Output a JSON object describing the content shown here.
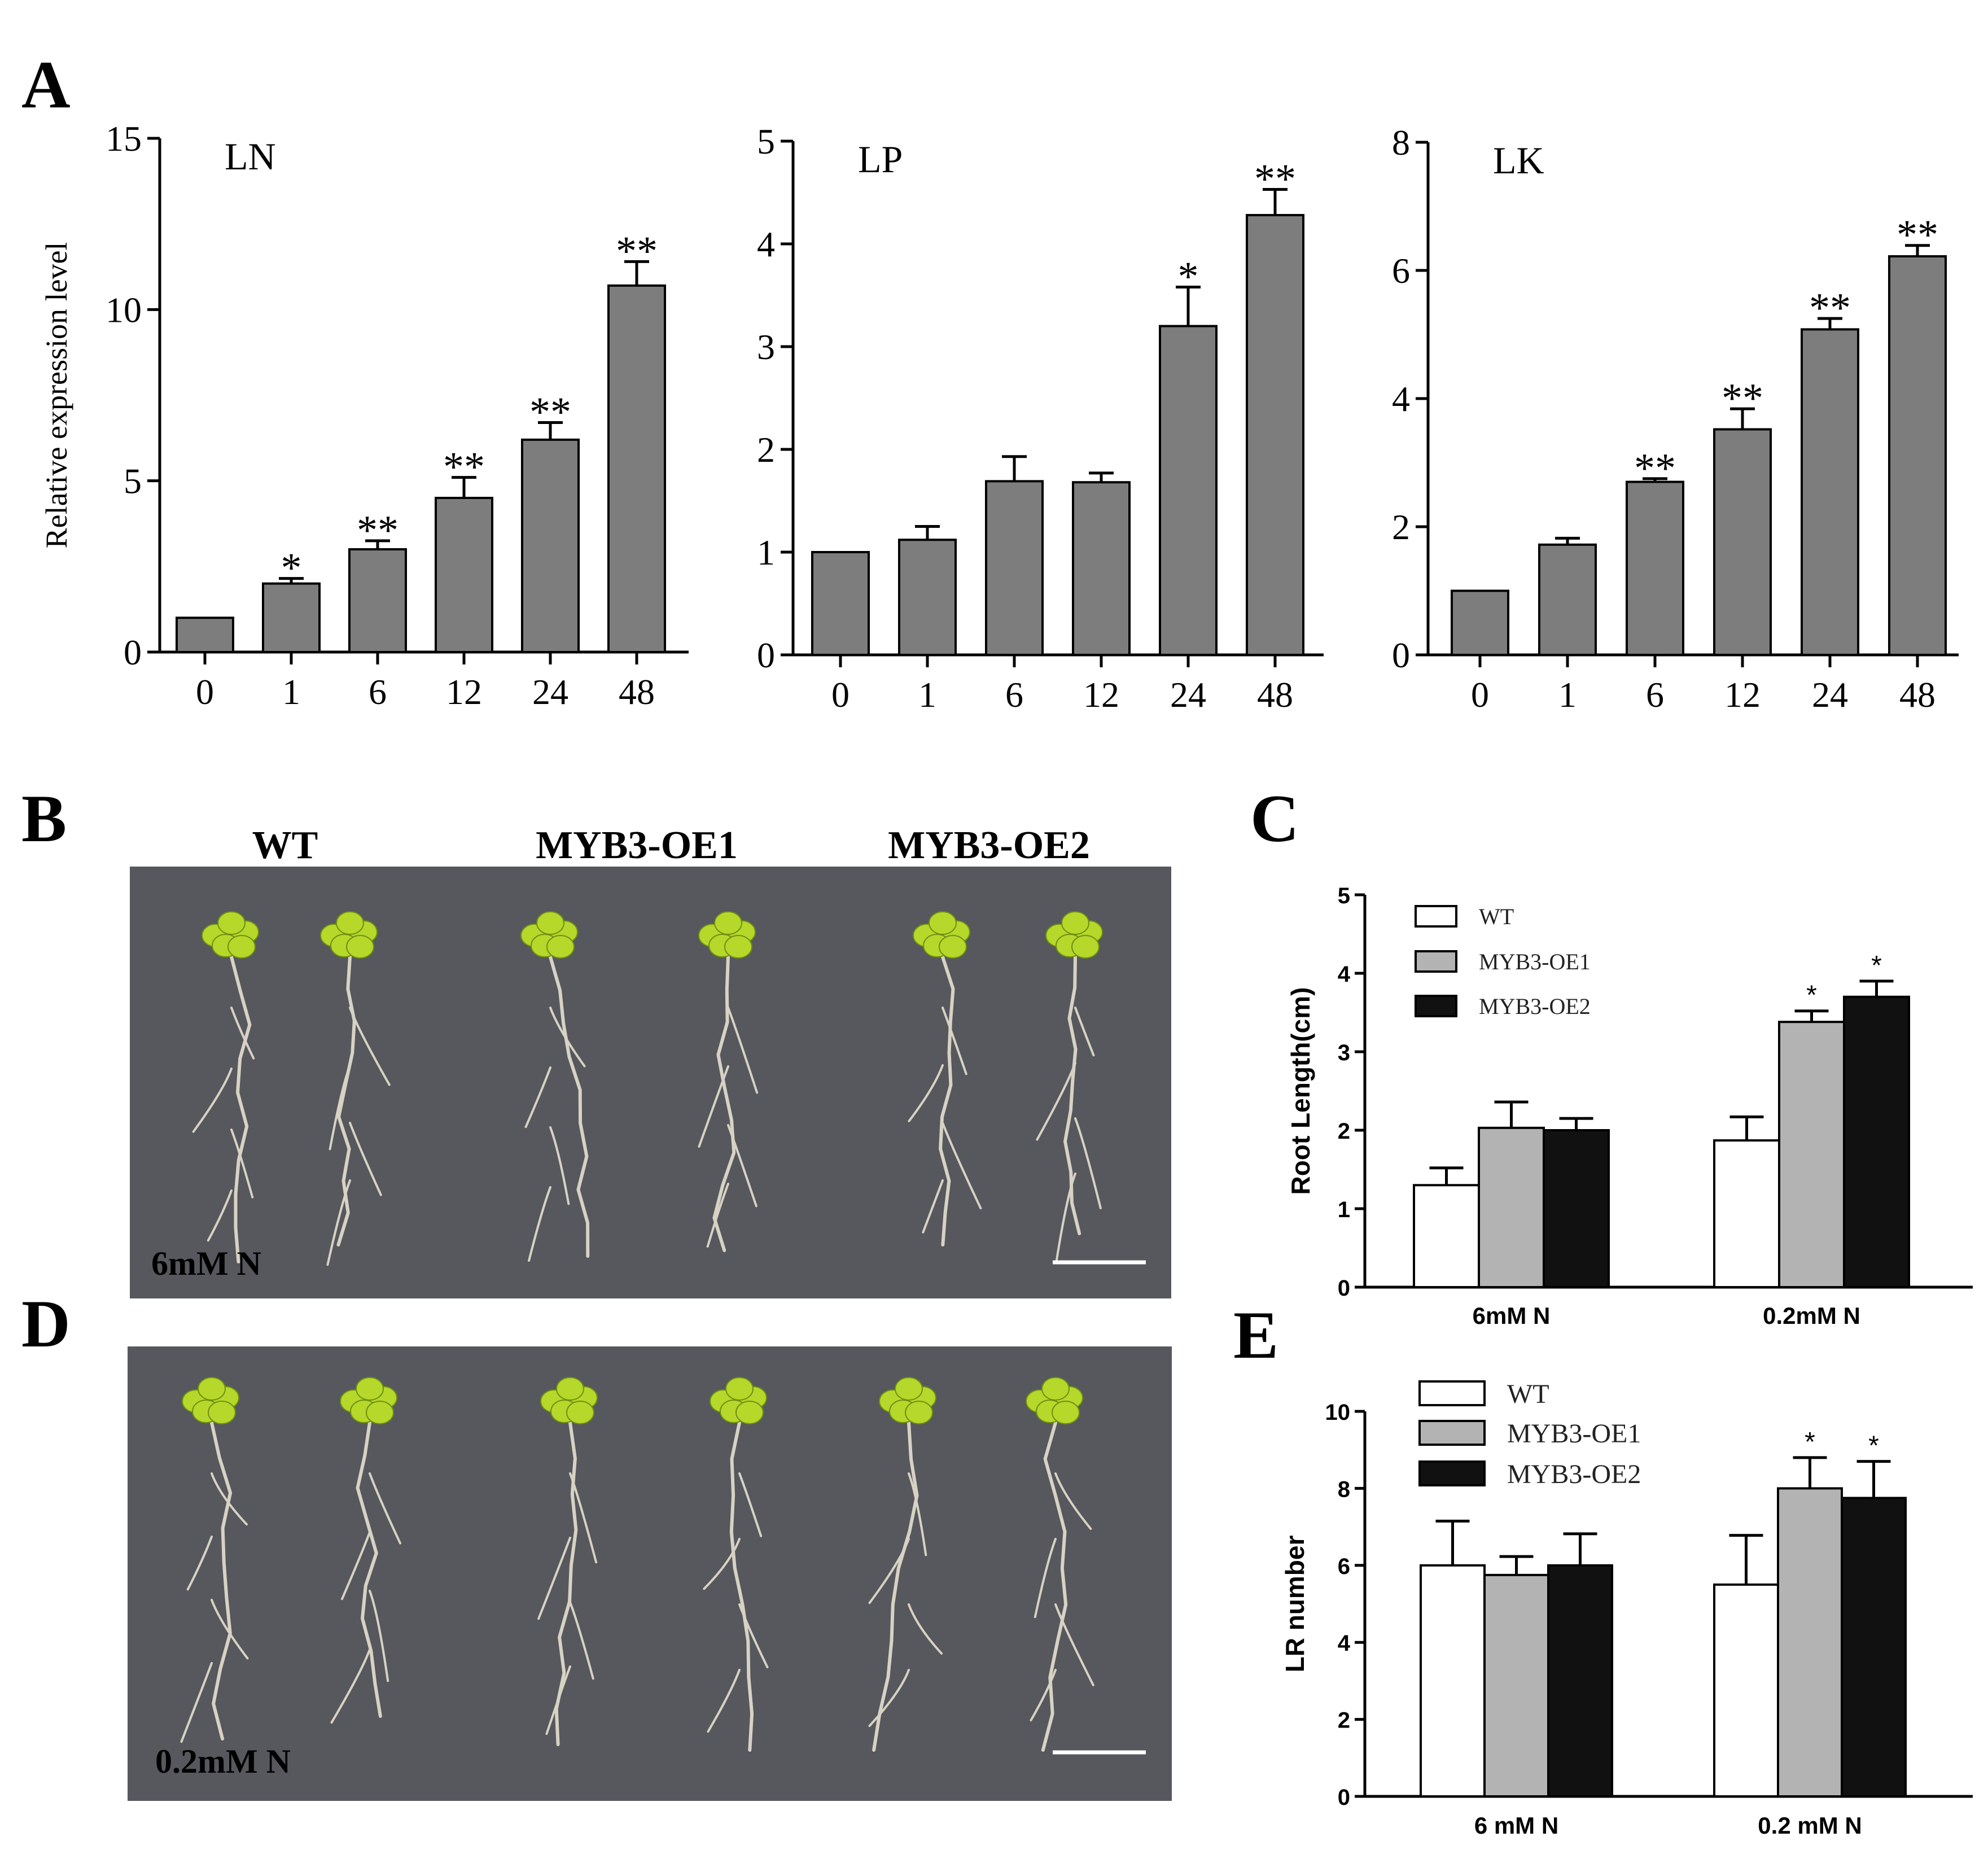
{
  "panels": {
    "A": "A",
    "B": "B",
    "C": "C",
    "D": "D",
    "E": "E"
  },
  "photo_B": {
    "genotypes": [
      "WT",
      "MYB3-OE1",
      "MYB3-OE2"
    ],
    "condition": "6mM N"
  },
  "photo_D": {
    "condition": "0.2mM N"
  },
  "colors": {
    "bar_gray": "#7d7d7d",
    "plate": "#55575c",
    "leaf": "#b5d82a",
    "root": "#d8d2c4",
    "oe1": "#b3b3b3",
    "oe2": "#111111",
    "wt": "#ffffff"
  },
  "chart_data": [
    {
      "id": "A-LN",
      "type": "bar",
      "title": "LN",
      "ylabel": "Relative expression level",
      "categories": [
        "0",
        "1",
        "6",
        "12",
        "24",
        "48"
      ],
      "values": [
        1.0,
        2.0,
        3.0,
        4.5,
        6.2,
        10.7
      ],
      "errors": [
        0,
        0.15,
        0.25,
        0.6,
        0.5,
        0.7
      ],
      "significance": [
        "",
        "*",
        "**",
        "**",
        "**",
        "**"
      ],
      "ylim": [
        0,
        15
      ],
      "yticks": [
        "0",
        "5",
        "10",
        "15"
      ]
    },
    {
      "id": "A-LP",
      "type": "bar",
      "title": "LP",
      "categories": [
        "0",
        "1",
        "6",
        "12",
        "24",
        "48"
      ],
      "values": [
        1.0,
        1.12,
        1.69,
        1.68,
        3.2,
        4.28
      ],
      "errors": [
        0,
        0.13,
        0.24,
        0.09,
        0.38,
        0.25
      ],
      "significance": [
        "",
        "",
        "",
        "",
        "*",
        "**"
      ],
      "ylim": [
        0,
        5
      ],
      "yticks": [
        "0",
        "1",
        "2",
        "3",
        "4",
        "5"
      ]
    },
    {
      "id": "A-LK",
      "type": "bar",
      "title": "LK",
      "categories": [
        "0",
        "1",
        "6",
        "12",
        "24",
        "48"
      ],
      "values": [
        1.0,
        1.72,
        2.7,
        3.52,
        5.08,
        6.22
      ],
      "errors": [
        0,
        0.1,
        0.05,
        0.32,
        0.17,
        0.17
      ],
      "significance": [
        "",
        "",
        "**",
        "**",
        "**",
        "**"
      ],
      "ylim": [
        0,
        8
      ],
      "yticks": [
        "0",
        "2",
        "4",
        "6",
        "8"
      ]
    },
    {
      "id": "C",
      "type": "bar",
      "ylabel": "Root Length(cm)",
      "categories": [
        "6mM N",
        "0.2mM N"
      ],
      "legend": [
        "WT",
        "MYB3-OE1",
        "MYB3-OE2"
      ],
      "series": [
        {
          "name": "WT",
          "values": [
            1.3,
            1.87
          ],
          "errors": [
            0.22,
            0.3
          ],
          "significance": [
            "",
            ""
          ]
        },
        {
          "name": "MYB3-OE1",
          "values": [
            2.03,
            3.38
          ],
          "errors": [
            0.33,
            0.14
          ],
          "significance": [
            "",
            "*"
          ]
        },
        {
          "name": "MYB3-OE2",
          "values": [
            2.0,
            3.7
          ],
          "errors": [
            0.15,
            0.2
          ],
          "significance": [
            "",
            "*"
          ]
        }
      ],
      "ylim": [
        0,
        5
      ],
      "yticks": [
        "0",
        "1",
        "2",
        "3",
        "4",
        "5"
      ]
    },
    {
      "id": "E",
      "type": "bar",
      "ylabel": "LR number",
      "categories": [
        "6 mM N",
        "0.2 mM N"
      ],
      "legend": [
        "WT",
        "MYB3-OE1",
        "MYB3-OE2"
      ],
      "series": [
        {
          "name": "WT",
          "values": [
            6.0,
            5.5
          ],
          "errors": [
            1.15,
            1.28
          ],
          "significance": [
            "",
            ""
          ]
        },
        {
          "name": "MYB3-OE1",
          "values": [
            5.75,
            8.0
          ],
          "errors": [
            0.48,
            0.8
          ],
          "significance": [
            "",
            "*"
          ]
        },
        {
          "name": "MYB3-OE2",
          "values": [
            6.0,
            7.75
          ],
          "errors": [
            0.82,
            0.95
          ],
          "significance": [
            "",
            "*"
          ]
        }
      ],
      "ylim": [
        0,
        10
      ],
      "yticks": [
        "0",
        "2",
        "4",
        "6",
        "8",
        "10"
      ]
    }
  ]
}
